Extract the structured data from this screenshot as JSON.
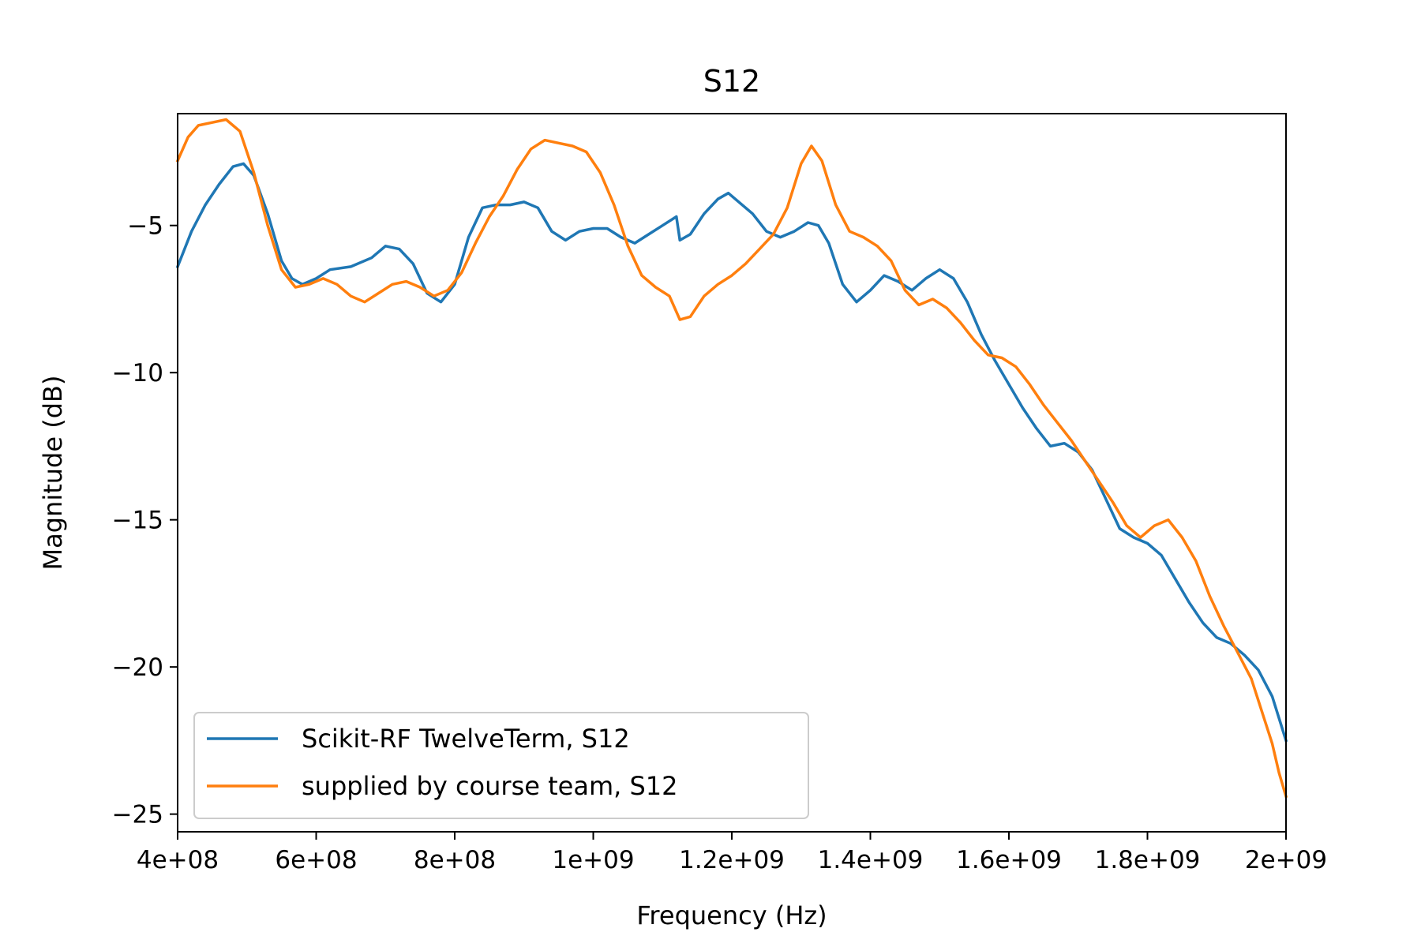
{
  "chart_data": {
    "type": "line",
    "title": "S12",
    "xlabel": "Frequency (Hz)",
    "ylabel": "Magnitude (dB)",
    "xlim": [
      400000000,
      2000000000
    ],
    "ylim": [
      -25.6,
      -1.2
    ],
    "x_ticks": [
      {
        "value": 400000000,
        "label": "4e+08"
      },
      {
        "value": 600000000,
        "label": "6e+08"
      },
      {
        "value": 800000000,
        "label": "8e+08"
      },
      {
        "value": 1000000000,
        "label": "1e+09"
      },
      {
        "value": 1200000000,
        "label": "1.2e+09"
      },
      {
        "value": 1400000000,
        "label": "1.4e+09"
      },
      {
        "value": 1600000000,
        "label": "1.6e+09"
      },
      {
        "value": 1800000000,
        "label": "1.8e+09"
      },
      {
        "value": 2000000000,
        "label": "2e+09"
      }
    ],
    "y_ticks": [
      {
        "value": -5,
        "label": "−5"
      },
      {
        "value": -10,
        "label": "−10"
      },
      {
        "value": -15,
        "label": "−15"
      },
      {
        "value": -20,
        "label": "−20"
      },
      {
        "value": -25,
        "label": "−25"
      }
    ],
    "grid": false,
    "legend_position": "bottom-left",
    "series": [
      {
        "name": "Scikit-RF TwelveTerm, S12",
        "color": "#1f77b4",
        "points": [
          [
            400000000,
            -6.4
          ],
          [
            420000000,
            -5.2
          ],
          [
            440000000,
            -4.3
          ],
          [
            460000000,
            -3.6
          ],
          [
            480000000,
            -3.0
          ],
          [
            495000000,
            -2.9
          ],
          [
            510000000,
            -3.3
          ],
          [
            530000000,
            -4.6
          ],
          [
            550000000,
            -6.2
          ],
          [
            565000000,
            -6.8
          ],
          [
            580000000,
            -7.0
          ],
          [
            600000000,
            -6.8
          ],
          [
            620000000,
            -6.5
          ],
          [
            650000000,
            -6.4
          ],
          [
            680000000,
            -6.1
          ],
          [
            700000000,
            -5.7
          ],
          [
            720000000,
            -5.8
          ],
          [
            740000000,
            -6.3
          ],
          [
            760000000,
            -7.3
          ],
          [
            780000000,
            -7.6
          ],
          [
            800000000,
            -7.0
          ],
          [
            820000000,
            -5.4
          ],
          [
            840000000,
            -4.4
          ],
          [
            860000000,
            -4.3
          ],
          [
            880000000,
            -4.3
          ],
          [
            900000000,
            -4.2
          ],
          [
            920000000,
            -4.4
          ],
          [
            940000000,
            -5.2
          ],
          [
            960000000,
            -5.5
          ],
          [
            980000000,
            -5.2
          ],
          [
            1000000000,
            -5.1
          ],
          [
            1020000000,
            -5.1
          ],
          [
            1040000000,
            -5.4
          ],
          [
            1060000000,
            -5.6
          ],
          [
            1080000000,
            -5.3
          ],
          [
            1100000000,
            -5.0
          ],
          [
            1120000000,
            -4.7
          ],
          [
            1125000000,
            -5.5
          ],
          [
            1140000000,
            -5.3
          ],
          [
            1160000000,
            -4.6
          ],
          [
            1180000000,
            -4.1
          ],
          [
            1195000000,
            -3.9
          ],
          [
            1210000000,
            -4.2
          ],
          [
            1230000000,
            -4.6
          ],
          [
            1250000000,
            -5.2
          ],
          [
            1270000000,
            -5.4
          ],
          [
            1290000000,
            -5.2
          ],
          [
            1310000000,
            -4.9
          ],
          [
            1325000000,
            -5.0
          ],
          [
            1340000000,
            -5.6
          ],
          [
            1360000000,
            -7.0
          ],
          [
            1380000000,
            -7.6
          ],
          [
            1400000000,
            -7.2
          ],
          [
            1420000000,
            -6.7
          ],
          [
            1440000000,
            -6.9
          ],
          [
            1460000000,
            -7.2
          ],
          [
            1480000000,
            -6.8
          ],
          [
            1500000000,
            -6.5
          ],
          [
            1520000000,
            -6.8
          ],
          [
            1540000000,
            -7.6
          ],
          [
            1560000000,
            -8.7
          ],
          [
            1580000000,
            -9.6
          ],
          [
            1600000000,
            -10.4
          ],
          [
            1620000000,
            -11.2
          ],
          [
            1640000000,
            -11.9
          ],
          [
            1660000000,
            -12.5
          ],
          [
            1680000000,
            -12.4
          ],
          [
            1700000000,
            -12.7
          ],
          [
            1720000000,
            -13.3
          ],
          [
            1740000000,
            -14.3
          ],
          [
            1760000000,
            -15.3
          ],
          [
            1780000000,
            -15.6
          ],
          [
            1800000000,
            -15.8
          ],
          [
            1820000000,
            -16.2
          ],
          [
            1840000000,
            -17.0
          ],
          [
            1860000000,
            -17.8
          ],
          [
            1880000000,
            -18.5
          ],
          [
            1900000000,
            -19.0
          ],
          [
            1920000000,
            -19.2
          ],
          [
            1940000000,
            -19.6
          ],
          [
            1960000000,
            -20.1
          ],
          [
            1980000000,
            -21.0
          ],
          [
            2000000000,
            -22.5
          ]
        ]
      },
      {
        "name": "supplied by course team, S12",
        "color": "#ff7f0e",
        "points": [
          [
            400000000,
            -2.8
          ],
          [
            415000000,
            -2.0
          ],
          [
            430000000,
            -1.6
          ],
          [
            450000000,
            -1.5
          ],
          [
            470000000,
            -1.4
          ],
          [
            490000000,
            -1.8
          ],
          [
            510000000,
            -3.2
          ],
          [
            530000000,
            -5.0
          ],
          [
            550000000,
            -6.5
          ],
          [
            570000000,
            -7.1
          ],
          [
            590000000,
            -7.0
          ],
          [
            610000000,
            -6.8
          ],
          [
            630000000,
            -7.0
          ],
          [
            650000000,
            -7.4
          ],
          [
            670000000,
            -7.6
          ],
          [
            690000000,
            -7.3
          ],
          [
            710000000,
            -7.0
          ],
          [
            730000000,
            -6.9
          ],
          [
            750000000,
            -7.1
          ],
          [
            770000000,
            -7.4
          ],
          [
            790000000,
            -7.2
          ],
          [
            810000000,
            -6.6
          ],
          [
            830000000,
            -5.6
          ],
          [
            850000000,
            -4.7
          ],
          [
            870000000,
            -4.0
          ],
          [
            890000000,
            -3.1
          ],
          [
            910000000,
            -2.4
          ],
          [
            930000000,
            -2.1
          ],
          [
            950000000,
            -2.2
          ],
          [
            970000000,
            -2.3
          ],
          [
            990000000,
            -2.5
          ],
          [
            1010000000,
            -3.2
          ],
          [
            1030000000,
            -4.3
          ],
          [
            1050000000,
            -5.7
          ],
          [
            1070000000,
            -6.7
          ],
          [
            1090000000,
            -7.1
          ],
          [
            1110000000,
            -7.4
          ],
          [
            1125000000,
            -8.2
          ],
          [
            1140000000,
            -8.1
          ],
          [
            1160000000,
            -7.4
          ],
          [
            1180000000,
            -7.0
          ],
          [
            1200000000,
            -6.7
          ],
          [
            1220000000,
            -6.3
          ],
          [
            1240000000,
            -5.8
          ],
          [
            1260000000,
            -5.3
          ],
          [
            1280000000,
            -4.4
          ],
          [
            1300000000,
            -2.9
          ],
          [
            1315000000,
            -2.3
          ],
          [
            1330000000,
            -2.8
          ],
          [
            1350000000,
            -4.3
          ],
          [
            1370000000,
            -5.2
          ],
          [
            1390000000,
            -5.4
          ],
          [
            1410000000,
            -5.7
          ],
          [
            1430000000,
            -6.2
          ],
          [
            1450000000,
            -7.2
          ],
          [
            1470000000,
            -7.7
          ],
          [
            1490000000,
            -7.5
          ],
          [
            1510000000,
            -7.8
          ],
          [
            1530000000,
            -8.3
          ],
          [
            1550000000,
            -8.9
          ],
          [
            1570000000,
            -9.4
          ],
          [
            1590000000,
            -9.5
          ],
          [
            1610000000,
            -9.8
          ],
          [
            1630000000,
            -10.4
          ],
          [
            1650000000,
            -11.1
          ],
          [
            1670000000,
            -11.7
          ],
          [
            1690000000,
            -12.3
          ],
          [
            1710000000,
            -13.0
          ],
          [
            1730000000,
            -13.7
          ],
          [
            1750000000,
            -14.4
          ],
          [
            1770000000,
            -15.2
          ],
          [
            1790000000,
            -15.6
          ],
          [
            1810000000,
            -15.2
          ],
          [
            1830000000,
            -15.0
          ],
          [
            1850000000,
            -15.6
          ],
          [
            1870000000,
            -16.4
          ],
          [
            1890000000,
            -17.6
          ],
          [
            1910000000,
            -18.6
          ],
          [
            1930000000,
            -19.5
          ],
          [
            1950000000,
            -20.4
          ],
          [
            1965000000,
            -21.5
          ],
          [
            1980000000,
            -22.6
          ],
          [
            1990000000,
            -23.6
          ],
          [
            2000000000,
            -24.4
          ]
        ]
      }
    ]
  }
}
